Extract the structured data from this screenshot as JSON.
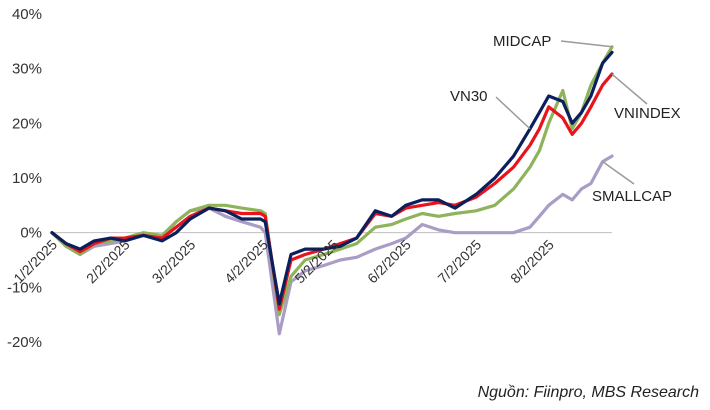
{
  "chart_data": {
    "type": "line",
    "title": "",
    "xlabel": "",
    "ylabel": "",
    "ylim": [
      -20,
      40
    ],
    "yticks": [
      -20,
      -10,
      0,
      10,
      20,
      30,
      40
    ],
    "ytick_format": "{v}%",
    "x_dates": [
      "1/2/2025",
      "2/2/2025",
      "3/2/2025",
      "4/2/2025",
      "5/2/2025",
      "6/2/2025",
      "7/2/2025",
      "8/2/2025"
    ],
    "xtick_labels": [
      "1/2/2025",
      "2/2/2025",
      "3/2/2025",
      "4/2/2025",
      "5/2/2025",
      "6/2/2025",
      "7/2/2025",
      "8/2/2025"
    ],
    "x_end": "8/29/2025",
    "grid": false,
    "source": "Nguồn: Fiinpro, MBS Research",
    "series": [
      {
        "name": "VN30",
        "color": "#0b1f5c",
        "points": [
          [
            "1/2/2025",
            0
          ],
          [
            "1/8/2025",
            -2
          ],
          [
            "1/14/2025",
            -3
          ],
          [
            "1/20/2025",
            -1.5
          ],
          [
            "1/27/2025",
            -1
          ],
          [
            "2/2/2025",
            -1.5
          ],
          [
            "2/10/2025",
            -0.5
          ],
          [
            "2/18/2025",
            -1.5
          ],
          [
            "2/24/2025",
            0
          ],
          [
            "3/2/2025",
            2.5
          ],
          [
            "3/10/2025",
            4.5
          ],
          [
            "3/17/2025",
            4
          ],
          [
            "3/24/2025",
            2.5
          ],
          [
            "4/1/2025",
            2.5
          ],
          [
            "4/3/2025",
            2
          ],
          [
            "4/9/2025",
            -13
          ],
          [
            "4/14/2025",
            -4
          ],
          [
            "4/20/2025",
            -3
          ],
          [
            "4/28/2025",
            -3
          ],
          [
            "5/5/2025",
            -2.5
          ],
          [
            "5/12/2025",
            -1
          ],
          [
            "5/20/2025",
            4
          ],
          [
            "5/27/2025",
            3
          ],
          [
            "6/2/2025",
            5
          ],
          [
            "6/9/2025",
            6
          ],
          [
            "6/16/2025",
            6
          ],
          [
            "6/23/2025",
            4.5
          ],
          [
            "7/2/2025",
            7
          ],
          [
            "7/10/2025",
            10
          ],
          [
            "7/18/2025",
            14
          ],
          [
            "7/25/2025",
            19
          ],
          [
            "7/29/2025",
            22
          ],
          [
            "8/2/2025",
            25
          ],
          [
            "8/8/2025",
            24
          ],
          [
            "8/12/2025",
            20
          ],
          [
            "8/16/2025",
            22
          ],
          [
            "8/20/2025",
            25
          ],
          [
            "8/25/2025",
            31
          ],
          [
            "8/29/2025",
            33
          ]
        ]
      },
      {
        "name": "VNINDEX",
        "color": "#e8131b",
        "points": [
          [
            "1/2/2025",
            0
          ],
          [
            "1/8/2025",
            -2
          ],
          [
            "1/14/2025",
            -3.5
          ],
          [
            "1/20/2025",
            -2
          ],
          [
            "1/27/2025",
            -1
          ],
          [
            "2/2/2025",
            -1
          ],
          [
            "2/10/2025",
            -0.5
          ],
          [
            "2/18/2025",
            -1
          ],
          [
            "2/24/2025",
            1
          ],
          [
            "3/2/2025",
            3
          ],
          [
            "3/10/2025",
            4.5
          ],
          [
            "3/17/2025",
            4
          ],
          [
            "3/24/2025",
            3.5
          ],
          [
            "4/1/2025",
            3.5
          ],
          [
            "4/3/2025",
            3
          ],
          [
            "4/9/2025",
            -14
          ],
          [
            "4/14/2025",
            -5
          ],
          [
            "4/20/2025",
            -4
          ],
          [
            "4/28/2025",
            -3
          ],
          [
            "5/5/2025",
            -2
          ],
          [
            "5/12/2025",
            -1
          ],
          [
            "5/20/2025",
            3.5
          ],
          [
            "5/27/2025",
            3
          ],
          [
            "6/2/2025",
            4.5
          ],
          [
            "6/9/2025",
            5
          ],
          [
            "6/16/2025",
            5.5
          ],
          [
            "6/23/2025",
            5
          ],
          [
            "7/2/2025",
            6.5
          ],
          [
            "7/10/2025",
            9
          ],
          [
            "7/18/2025",
            12
          ],
          [
            "7/25/2025",
            16
          ],
          [
            "7/29/2025",
            19
          ],
          [
            "8/2/2025",
            23
          ],
          [
            "8/8/2025",
            21
          ],
          [
            "8/12/2025",
            18
          ],
          [
            "8/16/2025",
            20
          ],
          [
            "8/20/2025",
            23
          ],
          [
            "8/25/2025",
            27
          ],
          [
            "8/29/2025",
            29
          ]
        ]
      },
      {
        "name": "MIDCAP",
        "color": "#8fb35a",
        "points": [
          [
            "1/2/2025",
            0
          ],
          [
            "1/8/2025",
            -2.5
          ],
          [
            "1/14/2025",
            -4
          ],
          [
            "1/20/2025",
            -2
          ],
          [
            "1/27/2025",
            -1.5
          ],
          [
            "2/2/2025",
            -1
          ],
          [
            "2/10/2025",
            0
          ],
          [
            "2/18/2025",
            -0.5
          ],
          [
            "2/24/2025",
            2
          ],
          [
            "3/2/2025",
            4
          ],
          [
            "3/10/2025",
            5
          ],
          [
            "3/17/2025",
            5
          ],
          [
            "3/24/2025",
            4.5
          ],
          [
            "4/1/2025",
            4
          ],
          [
            "4/3/2025",
            3.5
          ],
          [
            "4/9/2025",
            -15
          ],
          [
            "4/14/2025",
            -8
          ],
          [
            "4/20/2025",
            -5
          ],
          [
            "4/28/2025",
            -4
          ],
          [
            "5/5/2025",
            -3
          ],
          [
            "5/12/2025",
            -2
          ],
          [
            "5/20/2025",
            1
          ],
          [
            "5/27/2025",
            1.5
          ],
          [
            "6/2/2025",
            2.5
          ],
          [
            "6/9/2025",
            3.5
          ],
          [
            "6/16/2025",
            3
          ],
          [
            "6/23/2025",
            3.5
          ],
          [
            "7/2/2025",
            4
          ],
          [
            "7/10/2025",
            5
          ],
          [
            "7/18/2025",
            8
          ],
          [
            "7/25/2025",
            12
          ],
          [
            "7/29/2025",
            15
          ],
          [
            "8/2/2025",
            20
          ],
          [
            "8/8/2025",
            26
          ],
          [
            "8/12/2025",
            19
          ],
          [
            "8/16/2025",
            22
          ],
          [
            "8/20/2025",
            27
          ],
          [
            "8/25/2025",
            31
          ],
          [
            "8/29/2025",
            34
          ]
        ]
      },
      {
        "name": "SMALLCAP",
        "color": "#a99cc5",
        "points": [
          [
            "1/2/2025",
            0
          ],
          [
            "1/8/2025",
            -2.5
          ],
          [
            "1/14/2025",
            -4
          ],
          [
            "1/20/2025",
            -2.5
          ],
          [
            "1/27/2025",
            -2
          ],
          [
            "2/2/2025",
            -1.5
          ],
          [
            "2/10/2025",
            -0.5
          ],
          [
            "2/18/2025",
            -1
          ],
          [
            "2/24/2025",
            2
          ],
          [
            "3/2/2025",
            4
          ],
          [
            "3/10/2025",
            4.5
          ],
          [
            "3/17/2025",
            3
          ],
          [
            "3/24/2025",
            2
          ],
          [
            "4/1/2025",
            1
          ],
          [
            "4/3/2025",
            0
          ],
          [
            "4/9/2025",
            -18.5
          ],
          [
            "4/14/2025",
            -9
          ],
          [
            "4/20/2025",
            -7
          ],
          [
            "4/28/2025",
            -6
          ],
          [
            "5/5/2025",
            -5
          ],
          [
            "5/12/2025",
            -4.5
          ],
          [
            "5/20/2025",
            -3
          ],
          [
            "5/27/2025",
            -2
          ],
          [
            "6/2/2025",
            -1
          ],
          [
            "6/9/2025",
            1.5
          ],
          [
            "6/16/2025",
            0.5
          ],
          [
            "6/23/2025",
            0
          ],
          [
            "7/2/2025",
            0
          ],
          [
            "7/10/2025",
            0
          ],
          [
            "7/18/2025",
            0
          ],
          [
            "7/25/2025",
            1
          ],
          [
            "7/29/2025",
            3
          ],
          [
            "8/2/2025",
            5
          ],
          [
            "8/8/2025",
            7
          ],
          [
            "8/12/2025",
            6
          ],
          [
            "8/16/2025",
            8
          ],
          [
            "8/20/2025",
            9
          ],
          [
            "8/25/2025",
            13
          ],
          [
            "8/29/2025",
            14
          ]
        ]
      }
    ],
    "annotations": [
      {
        "text": "MIDCAP",
        "series": "MIDCAP"
      },
      {
        "text": "VN30",
        "series": "VN30"
      },
      {
        "text": "VNINDEX",
        "series": "VNINDEX"
      },
      {
        "text": "SMALLCAP",
        "series": "SMALLCAP"
      }
    ]
  }
}
